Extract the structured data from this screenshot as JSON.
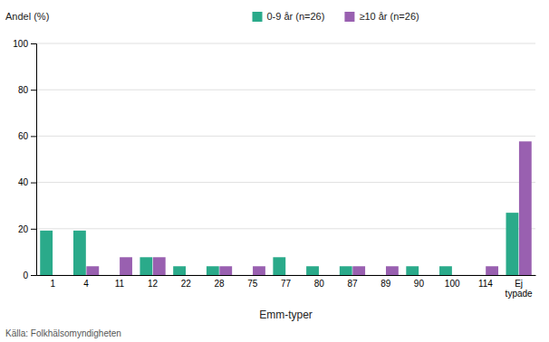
{
  "chart_data": {
    "type": "bar",
    "categories": [
      "1",
      "4",
      "11",
      "12",
      "22",
      "28",
      "75",
      "77",
      "80",
      "87",
      "89",
      "90",
      "100",
      "114",
      "Ej\ntypade"
    ],
    "series": [
      {
        "name": "0-9 år (n=26)",
        "color": "#2aaa8a",
        "values": [
          19.2,
          19.2,
          0,
          7.7,
          3.8,
          3.8,
          0,
          7.7,
          3.8,
          3.8,
          0,
          3.8,
          3.8,
          0,
          26.9
        ]
      },
      {
        "name": "≥10 år (n=26)",
        "color": "#9960b0",
        "values": [
          0,
          3.8,
          7.7,
          7.7,
          0,
          3.8,
          3.8,
          0,
          0,
          3.8,
          3.8,
          0,
          0,
          3.8,
          57.7
        ]
      }
    ],
    "x_label": "Emm-typer",
    "y_label": "Andel (%)",
    "annotations": [
      "Källa: Folkhälsomyndigheten"
    ],
    "ylim": [
      0,
      100
    ],
    "yticks": [
      0,
      20,
      40,
      60,
      80,
      100
    ],
    "grid": true,
    "legend": "top"
  }
}
